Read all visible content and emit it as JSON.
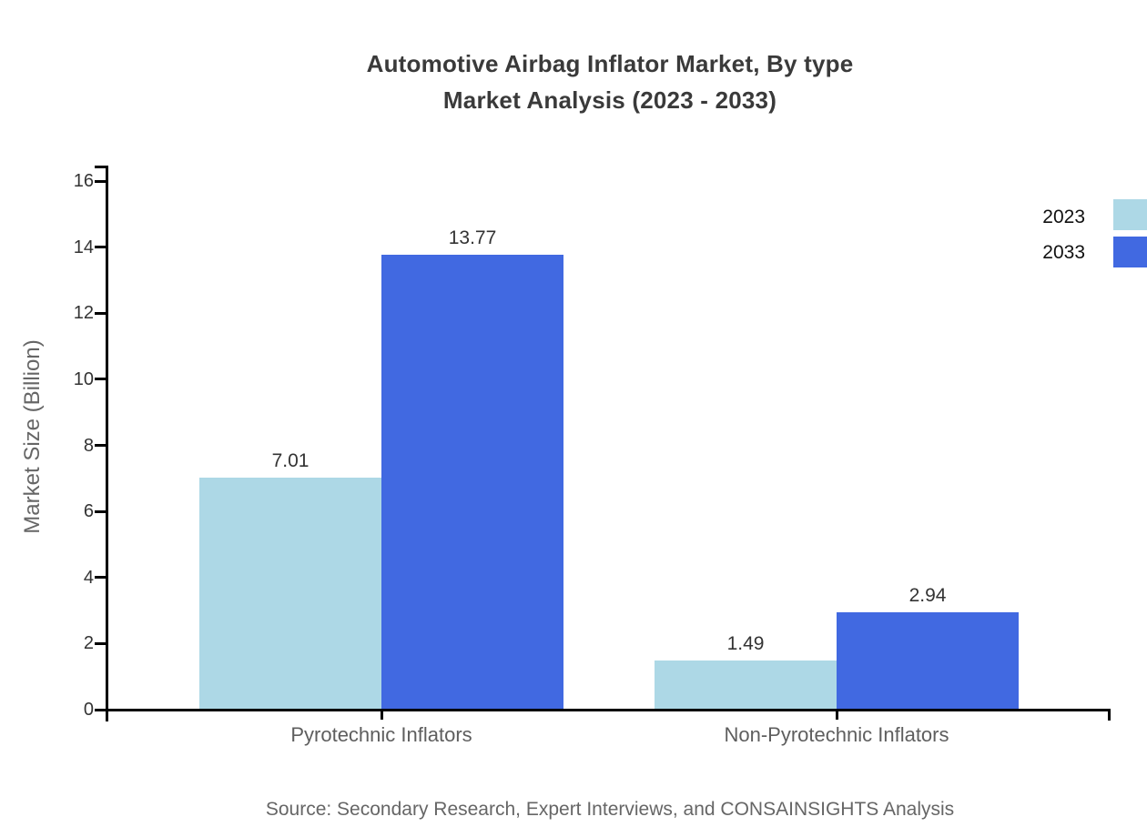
{
  "chart_data": {
    "type": "bar",
    "title": "Automotive Airbag Inflator Market, By type Market Analysis (2023 - 2033)",
    "title_line1": "Automotive Airbag Inflator Market, By type",
    "title_line2": "Market Analysis (2023 - 2033)",
    "categories": [
      "Pyrotechnic Inflators",
      "Non-Pyrotechnic Inflators"
    ],
    "series": [
      {
        "name": "2023",
        "color": "#ADD8E6",
        "values": [
          7.01,
          1.49
        ]
      },
      {
        "name": "2033",
        "color": "#4169E1",
        "values": [
          13.77,
          2.94
        ]
      }
    ],
    "xlabel": "",
    "ylabel": "Market Size (Billion)",
    "yticks": [
      0,
      2,
      4,
      6,
      8,
      10,
      12,
      14,
      16
    ],
    "ylim": [
      0,
      16
    ],
    "grid": false,
    "legend_position": "top-right",
    "value_labels": true,
    "source": "Source: Secondary Research, Expert Interviews, and CONSAINSIGHTS Analysis"
  },
  "colors": {
    "background": "#FFFFFF",
    "axis": "#000000",
    "title": "#3A3A3A",
    "tick_label": "#333333",
    "value_label": "#333333",
    "category_label": "#5E5E5E",
    "ylabel": "#666666",
    "source": "#666666",
    "legend_text": "#111111"
  }
}
